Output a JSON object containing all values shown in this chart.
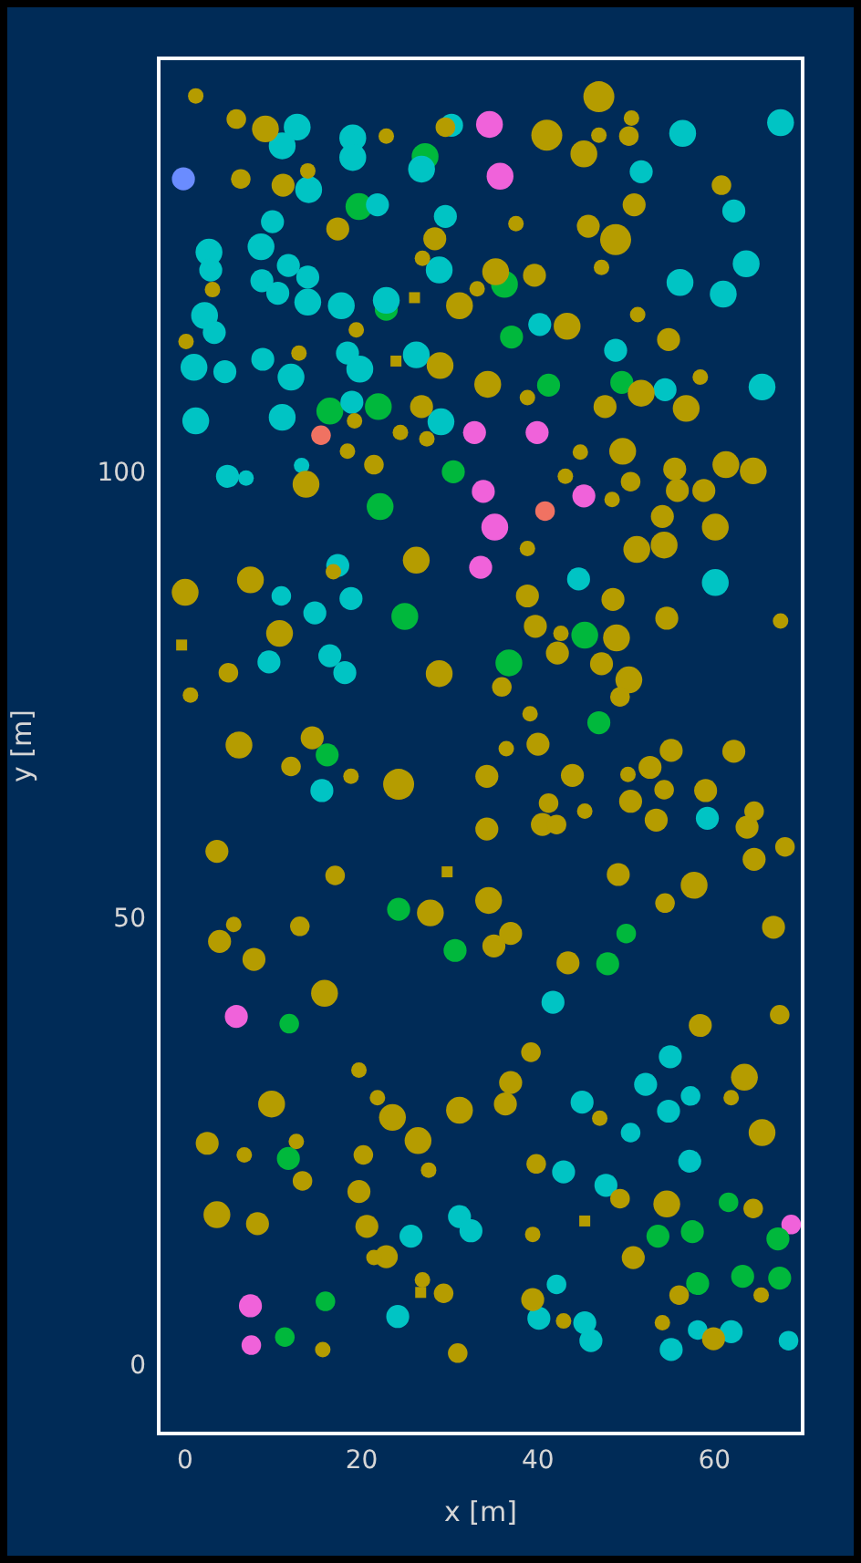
{
  "chart_data": {
    "type": "bubble",
    "xlabel": "x [m]",
    "ylabel": "y [m]",
    "xlim": [
      -3,
      70
    ],
    "xticks": [
      0,
      20,
      40,
      60
    ],
    "ylim": [
      -7.5,
      146.5
    ],
    "yticks": [
      0,
      50,
      100
    ],
    "legend": false,
    "marker": "circle",
    "series": [
      {
        "color": "#b59c00",
        "x": [
          1.2,
          5.8,
          9.1,
          6.3,
          11.1,
          13.9,
          22.8,
          29.5,
          17.3,
          28.3,
          26.9,
          41.0,
          46.9,
          50.6,
          46.9,
          50.3,
          45.2,
          50.9,
          37.5,
          45.7,
          48.8,
          47.2,
          39.6,
          35.2,
          60.8,
          3.1,
          31.1,
          33.1,
          43.3,
          19.4,
          0.1,
          12.9,
          28.9,
          34.3,
          38.8,
          51.3,
          54.8,
          51.7,
          58.4,
          56.8,
          47.6,
          19.2,
          26.8,
          24.4,
          27.4,
          18.4,
          21.4,
          13.7,
          44.8,
          49.6,
          43.1,
          50.5,
          55.5,
          55.8,
          58.8,
          61.3,
          64.4,
          48.4,
          54.1,
          60.1,
          51.2,
          54.3,
          38.8,
          26.2,
          16.8,
          7.4,
          0.0,
          38.8,
          48.5,
          54.6,
          67.5,
          10.7,
          39.7,
          42.6,
          48.9,
          42.2,
          47.2,
          50.3,
          49.3,
          4.9,
          28.8,
          35.9,
          0.6,
          39.1,
          6.1,
          14.4,
          12.0,
          18.8,
          24.2,
          36.4,
          40.0,
          34.2,
          43.9,
          41.2,
          40.5,
          42.1,
          45.3,
          34.2,
          50.2,
          52.7,
          55.1,
          62.2,
          50.5,
          54.3,
          53.4,
          59.0,
          63.7,
          64.5,
          64.5,
          68.0,
          3.6,
          17.0,
          49.1,
          57.7,
          54.4,
          34.4,
          27.8,
          13.0,
          5.5,
          3.9,
          66.7,
          36.9,
          35.0,
          7.8,
          43.4,
          15.8,
          58.4,
          67.4,
          63.4,
          61.9,
          65.4,
          47.0,
          39.2,
          36.9,
          36.3,
          31.1,
          19.7,
          21.8,
          23.5,
          9.8,
          26.4,
          2.5,
          6.7,
          12.6,
          20.2,
          27.6,
          39.8,
          13.3,
          19.7,
          3.6,
          8.2,
          20.6,
          54.6,
          49.3,
          64.4,
          50.8,
          39.4,
          22.8,
          21.4,
          26.9,
          29.3,
          15.6,
          30.9,
          39.4,
          42.9,
          56.0,
          65.3,
          54.1,
          59.9
        ],
        "values": [
          142.3,
          139.7,
          138.6,
          133.0,
          132.3,
          133.9,
          137.8,
          138.8,
          127.4,
          126.3,
          124.1,
          137.9,
          142.2,
          139.8,
          137.9,
          137.8,
          135.8,
          130.1,
          128.0,
          127.7,
          126.2,
          123.1,
          122.2,
          122.6,
          132.3,
          120.6,
          118.8,
          120.7,
          116.5,
          116.1,
          114.8,
          113.5,
          112.1,
          110.0,
          108.5,
          117.8,
          115.0,
          109.0,
          110.8,
          107.3,
          107.5,
          105.9,
          107.5,
          104.6,
          103.9,
          102.5,
          101.0,
          98.8,
          102.4,
          102.5,
          99.7,
          99.1,
          100.5,
          98.1,
          98.1,
          101.0,
          100.3,
          97.1,
          95.2,
          94.0,
          91.5,
          92.0,
          91.6,
          90.3,
          89.0,
          88.1,
          86.7,
          86.3,
          85.9,
          83.8,
          83.5,
          82.1,
          82.9,
          82.1,
          81.6,
          79.9,
          78.7,
          76.9,
          75.0,
          77.7,
          77.6,
          76.1,
          75.2,
          73.1,
          69.6,
          70.4,
          67.2,
          66.1,
          65.2,
          69.2,
          69.7,
          66.1,
          66.2,
          63.1,
          60.7,
          60.7,
          62.2,
          60.2,
          66.3,
          67.1,
          69.0,
          68.9,
          63.3,
          64.6,
          61.2,
          64.5,
          60.4,
          62.2,
          56.8,
          58.2,
          57.7,
          55.0,
          55.1,
          53.9,
          51.9,
          52.2,
          50.8,
          49.3,
          49.5,
          47.6,
          49.2,
          48.5,
          47.1,
          45.6,
          45.2,
          41.8,
          38.2,
          39.4,
          32.4,
          30.1,
          26.2,
          27.8,
          35.2,
          31.8,
          29.4,
          28.7,
          33.2,
          30.1,
          27.9,
          29.4,
          25.3,
          25.0,
          23.7,
          25.2,
          23.7,
          22.0,
          22.7,
          20.8,
          19.6,
          17.0,
          16.0,
          15.7,
          18.2,
          18.8,
          17.7,
          12.2,
          14.8,
          12.3,
          12.2,
          9.7,
          8.2,
          1.9,
          1.5,
          7.5,
          5.1,
          8.0,
          8.0,
          4.9,
          3.1
        ],
        "sizes": [
          0.25,
          0.4,
          0.75,
          0.4,
          0.55,
          0.25,
          0.25,
          0.4,
          0.55,
          0.55,
          0.25,
          1,
          1,
          0.25,
          0.25,
          0.4,
          0.75,
          0.55,
          0.25,
          0.55,
          1,
          0.25,
          0.55,
          0.75,
          0.4,
          0.25,
          0.75,
          0.25,
          0.75,
          0.25,
          0.25,
          0.25,
          0.75,
          0.75,
          0.25,
          0.25,
          0.55,
          0.75,
          0.25,
          0.75,
          0.55,
          0.25,
          0.55,
          0.25,
          0.25,
          0.25,
          0.4,
          0.75,
          0.25,
          0.75,
          0.25,
          0.4,
          0.55,
          0.55,
          0.55,
          0.75,
          0.75,
          0.25,
          0.55,
          0.75,
          0.75,
          0.75,
          0.25,
          0.75,
          0.25,
          0.75,
          0.75,
          0.55,
          0.55,
          0.55,
          0.25,
          0.75,
          0.55,
          0.25,
          0.75,
          0.55,
          0.55,
          0.75,
          0.4,
          0.4,
          0.75,
          0.4,
          0.25,
          0.25,
          0.75,
          0.55,
          0.4,
          0.25,
          1,
          0.25,
          0.55,
          0.55,
          0.55,
          0.4,
          0.55,
          0.4,
          0.25,
          0.55,
          0.25,
          0.55,
          0.55,
          0.55,
          0.55,
          0.4,
          0.55,
          0.55,
          0.55,
          0.4,
          0.55,
          0.4,
          0.55,
          0.4,
          0.55,
          0.75,
          0.4,
          0.75,
          0.75,
          0.4,
          0.25,
          0.55,
          0.55,
          0.55,
          0.55,
          0.55,
          0.55,
          0.75,
          0.55,
          0.4,
          0.75,
          0.25,
          0.75,
          0.25,
          0.4,
          0.55,
          0.55,
          0.75,
          0.25,
          0.25,
          0.75,
          0.75,
          0.75,
          0.55,
          0.25,
          0.25,
          0.4,
          0.25,
          0.4,
          0.4,
          0.55,
          0.75,
          0.55,
          0.55,
          0.75,
          0.4,
          0.4,
          0.55,
          0.25,
          0.55,
          0.25,
          0.25,
          0.4,
          0.25,
          0.4,
          0.55,
          0.25,
          0.4,
          0.25,
          0.25,
          0.55
        ]
      },
      {
        "color": "#00c4c4",
        "x": [
          12.7,
          11.0,
          14.0,
          19.0,
          19.0,
          30.2,
          26.8,
          21.8,
          9.9,
          29.5,
          28.8,
          56.4,
          67.5,
          51.7,
          62.2,
          63.6,
          56.1,
          2.7,
          2.9,
          8.6,
          11.7,
          13.9,
          8.7,
          10.5,
          13.9,
          17.7,
          2.2,
          3.3,
          22.8,
          40.2,
          1.0,
          4.5,
          8.8,
          12.0,
          18.4,
          19.8,
          26.2,
          48.8,
          61.0,
          54.4,
          65.4,
          1.2,
          11.0,
          18.9,
          29.0,
          4.8,
          6.9,
          13.2,
          17.3,
          10.9,
          14.7,
          18.8,
          44.6,
          60.1,
          9.5,
          16.4,
          18.1,
          15.5,
          59.2,
          41.7,
          55.0,
          52.2,
          57.3,
          54.8,
          45.0,
          50.5,
          42.9,
          57.2,
          47.7,
          31.1,
          32.4,
          25.6,
          24.1,
          40.1,
          42.1,
          45.3,
          46.0,
          58.1,
          61.9,
          55.1,
          68.4
        ],
        "values": [
          138.8,
          136.7,
          131.8,
          137.6,
          135.4,
          139.0,
          134.1,
          130.1,
          128.2,
          128.8,
          122.8,
          138.1,
          139.3,
          133.8,
          129.4,
          123.5,
          121.4,
          124.8,
          122.8,
          125.4,
          123.3,
          122.0,
          121.6,
          120.2,
          119.2,
          118.8,
          117.7,
          115.8,
          119.4,
          116.7,
          111.9,
          111.4,
          112.8,
          110.8,
          113.5,
          111.7,
          113.3,
          113.8,
          120.1,
          109.4,
          109.7,
          105.9,
          106.3,
          108.0,
          105.8,
          99.7,
          99.5,
          100.9,
          89.7,
          86.3,
          84.4,
          86.0,
          88.2,
          87.8,
          78.9,
          79.6,
          77.7,
          64.5,
          61.4,
          40.8,
          34.7,
          31.6,
          30.3,
          28.6,
          29.6,
          26.2,
          21.8,
          23.0,
          20.3,
          16.8,
          15.2,
          14.6,
          5.6,
          5.4,
          9.2,
          4.9,
          2.9,
          4.1,
          3.9,
          1.9,
          2.9
        ],
        "sizes": [
          0.75,
          0.75,
          0.75,
          0.75,
          0.75,
          0.55,
          0.75,
          0.55,
          0.55,
          0.55,
          0.75,
          0.75,
          0.75,
          0.55,
          0.55,
          0.75,
          0.75,
          0.75,
          0.55,
          0.75,
          0.55,
          0.55,
          0.55,
          0.55,
          0.75,
          0.75,
          0.75,
          0.55,
          0.75,
          0.55,
          0.75,
          0.55,
          0.55,
          0.75,
          0.55,
          0.75,
          0.75,
          0.55,
          0.75,
          0.55,
          0.75,
          0.75,
          0.75,
          0.55,
          0.75,
          0.55,
          0.25,
          0.25,
          0.55,
          0.4,
          0.55,
          0.55,
          0.55,
          0.75,
          0.55,
          0.55,
          0.55,
          0.55,
          0.55,
          0.55,
          0.55,
          0.55,
          0.4,
          0.55,
          0.55,
          0.4,
          0.55,
          0.55,
          0.55,
          0.55,
          0.55,
          0.55,
          0.55,
          0.55,
          0.4,
          0.55,
          0.55,
          0.4,
          0.55,
          0.55,
          0.4
        ]
      },
      {
        "color": "#00b83c",
        "x": [
          27.2,
          19.7,
          36.2,
          22.8,
          37.0,
          41.2,
          49.5,
          16.4,
          21.9,
          30.4,
          22.1,
          24.9,
          45.3,
          36.7,
          46.9,
          16.1,
          24.2,
          50.0,
          30.6,
          47.9,
          11.8,
          11.7,
          61.6,
          67.2,
          53.6,
          57.5,
          11.3,
          15.9,
          58.1,
          63.2,
          67.4
        ],
        "values": [
          135.5,
          129.9,
          121.2,
          118.4,
          115.3,
          109.9,
          110.2,
          107.0,
          107.5,
          100.2,
          96.3,
          84.0,
          81.9,
          78.8,
          72.1,
          68.5,
          51.2,
          48.5,
          46.6,
          45.1,
          38.4,
          23.3,
          18.4,
          14.3,
          14.6,
          15.1,
          3.3,
          7.3,
          9.3,
          10.1,
          9.9
        ],
        "sizes": [
          0.75,
          0.75,
          0.75,
          0.55,
          0.55,
          0.55,
          0.55,
          0.75,
          0.75,
          0.55,
          0.75,
          0.75,
          0.75,
          0.75,
          0.55,
          0.55,
          0.55,
          0.4,
          0.55,
          0.55,
          0.4,
          0.55,
          0.4,
          0.55,
          0.55,
          0.55,
          0.4,
          0.4,
          0.55,
          0.55,
          0.55
        ]
      },
      {
        "color": "#f062da",
        "x": [
          34.5,
          35.7,
          32.8,
          39.9,
          33.8,
          45.2,
          35.1,
          33.5,
          5.8,
          68.7,
          7.4,
          7.5
        ],
        "values": [
          139.1,
          133.3,
          104.6,
          104.6,
          98.0,
          97.5,
          94.0,
          89.5,
          39.2,
          15.9,
          6.8,
          2.4
        ],
        "sizes": [
          0.75,
          0.75,
          0.55,
          0.55,
          0.55,
          0.55,
          0.75,
          0.55,
          0.55,
          0.4,
          0.55,
          0.4
        ]
      },
      {
        "color": "#f07262",
        "x": [
          15.4,
          40.8
        ],
        "values": [
          104.3,
          95.8
        ],
        "sizes": [
          0.4,
          0.4
        ]
      },
      {
        "color": "#6a8cff",
        "x": [
          -0.2
        ],
        "values": [
          133.0
        ],
        "sizes": [
          0.55
        ]
      },
      {
        "color": "#b59c00",
        "marker": "square",
        "x": [
          26.0,
          23.9,
          -0.4,
          29.7,
          45.3,
          26.7
        ],
        "values": [
          119.7,
          112.6,
          80.8,
          55.4,
          16.3,
          8.3
        ],
        "sizes": [
          0.25,
          0.25,
          0.25,
          0.25,
          0.25,
          0.25
        ]
      }
    ]
  }
}
